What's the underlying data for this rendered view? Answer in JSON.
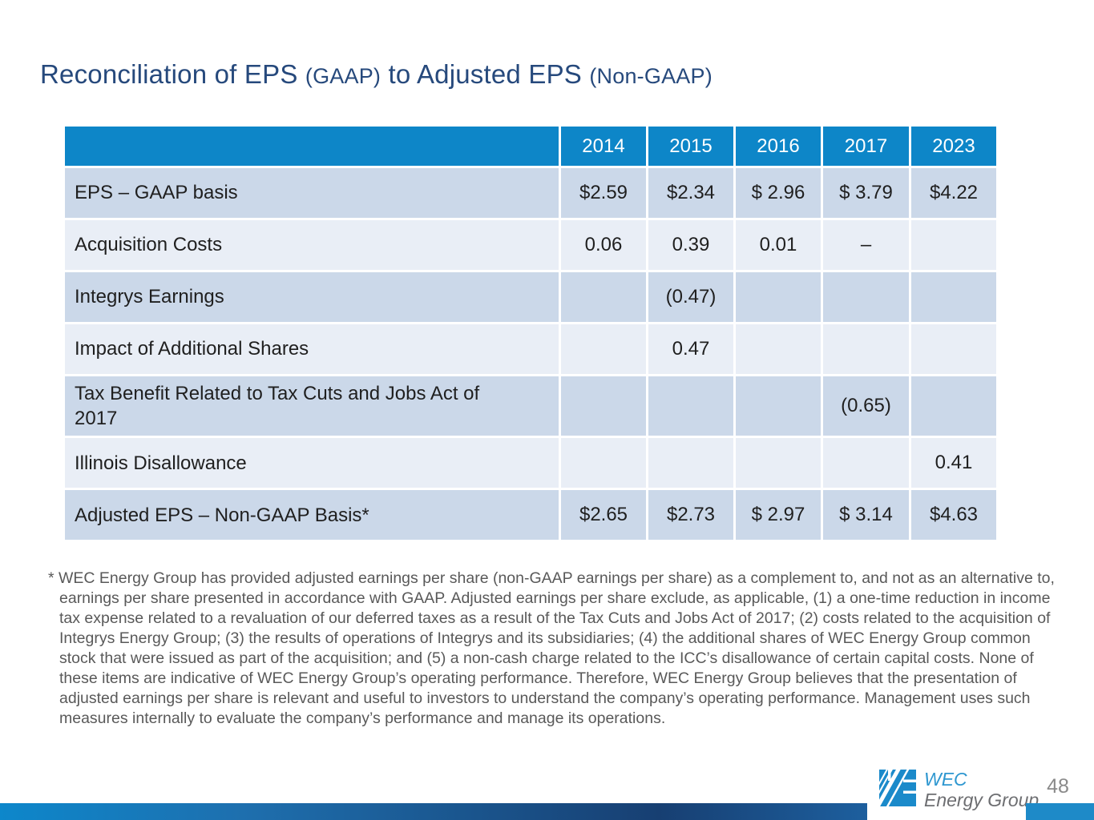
{
  "title": {
    "part1": "Reconciliation of EPS ",
    "part2": "(GAAP)",
    "part3": " to Adjusted EPS ",
    "part4": "(Non-GAAP)"
  },
  "table": {
    "columns": [
      "2014",
      "2015",
      "2016",
      "2017",
      "2023"
    ],
    "rows": [
      {
        "label": "EPS – GAAP basis",
        "values": [
          "$2.59",
          "$2.34",
          "$ 2.96",
          "$ 3.79",
          "$4.22"
        ],
        "shade": "dark",
        "total": false
      },
      {
        "label": "Acquisition Costs",
        "values": [
          "0.06",
          "0.39",
          "0.01",
          "–",
          ""
        ],
        "shade": "light",
        "total": false
      },
      {
        "label": "Integrys Earnings",
        "values": [
          "",
          "(0.47)",
          "",
          "",
          ""
        ],
        "shade": "dark",
        "total": false
      },
      {
        "label": "Impact of Additional Shares",
        "values": [
          "",
          "0.47",
          "",
          "",
          ""
        ],
        "shade": "light",
        "total": false
      },
      {
        "label": "Tax Benefit Related to Tax Cuts and Jobs Act of\n2017",
        "values": [
          "",
          "",
          "",
          "(0.65)",
          ""
        ],
        "shade": "dark",
        "total": false
      },
      {
        "label": "Illinois Disallowance",
        "values": [
          "",
          "",
          "",
          "",
          "0.41"
        ],
        "shade": "light",
        "total": false
      },
      {
        "label": "Adjusted EPS – Non-GAAP Basis*",
        "values": [
          "$2.65",
          "$2.73",
          "$ 2.97",
          "$ 3.14",
          "$4.63"
        ],
        "shade": "dark",
        "total": true
      }
    ]
  },
  "footnote": "* WEC Energy Group has provided adjusted earnings per share (non-GAAP earnings per share) as a complement to, and not as an alternative to, earnings per share presented in accordance with GAAP. Adjusted earnings per share exclude, as applicable, (1) a one-time reduction in income tax expense related to a revaluation of our deferred taxes as a result of the Tax Cuts and Jobs Act of 2017; (2) costs related to the acquisition of Integrys Energy Group; (3) the results of operations of Integrys and its subsidiaries; (4) the additional shares of WEC Energy Group common stock that were issued as part of the acquisition; and (5) a non-cash charge related to the ICC’s disallowance of certain capital costs. None of these items are indicative of WEC Energy Group’s operating performance. Therefore, WEC Energy Group believes that the presentation of adjusted earnings per share is relevant and useful to investors to understand the company’s operating performance. Management uses such measures internally to evaluate the company’s performance and manage its operations.",
  "footer": {
    "page_number": "48",
    "logo": {
      "line1": "WEC",
      "line2": "Energy Group"
    }
  },
  "colors": {
    "title": "#26497c",
    "table_header_bg": "#0d86c8",
    "row_dark": "#cbd8e9",
    "row_light": "#e9eef6",
    "table_text": "#1f1f1f",
    "footnote_text": "#595959",
    "bar_bright_blue": "#0d87cb",
    "bar_dark_navy": "#173f72",
    "bar_right_blue": "#1e8ac8",
    "logo_blue": "#1b8aca",
    "logo_text_blue": "#2e97d0",
    "logo_text_gray": "#6d6e71",
    "page_number_gray": "#8a8a8a"
  }
}
